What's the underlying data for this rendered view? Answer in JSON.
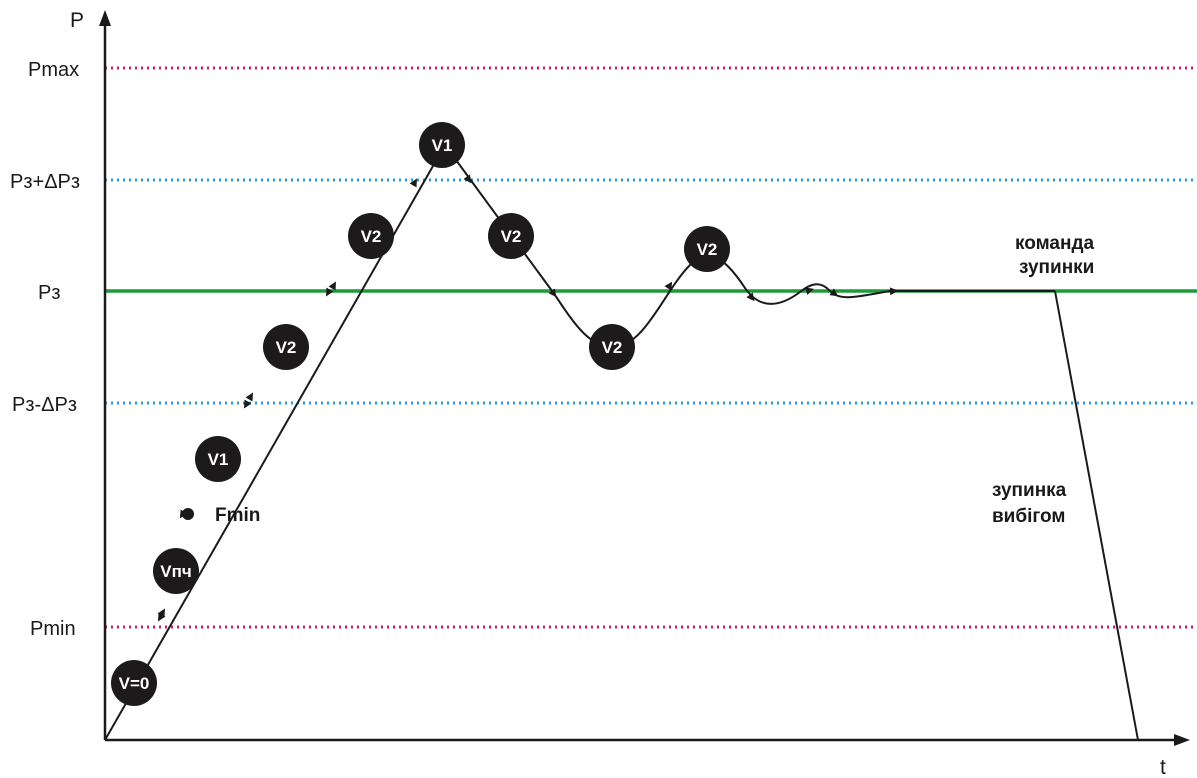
{
  "axes": {
    "y_label": "P",
    "x_label": "t"
  },
  "levels": {
    "pmax": {
      "label": "Pmax",
      "color": "#c51f7c"
    },
    "upper": {
      "label": "Pз+ΔPз",
      "color": "#2c9ad6"
    },
    "setpoint": {
      "label": "Pз",
      "color": "#1f9a3b"
    },
    "lower": {
      "label": "Pз-ΔPз",
      "color": "#2c9ad6"
    },
    "pmin": {
      "label": "Pmin",
      "color": "#c51f7c"
    }
  },
  "nodes": {
    "v0": "V=0",
    "vpch": "Vпч",
    "v1a": "V1",
    "v2a": "V2",
    "v2b": "V2",
    "v1peak": "V1",
    "v2c": "V2",
    "v2d": "V2",
    "v2e": "V2"
  },
  "annotations": {
    "fmin": "Fmin",
    "stop_command_1": "команда",
    "stop_command_2": "зупинки",
    "coast_stop_1": "зупинка",
    "coast_stop_2": "вибігом"
  }
}
